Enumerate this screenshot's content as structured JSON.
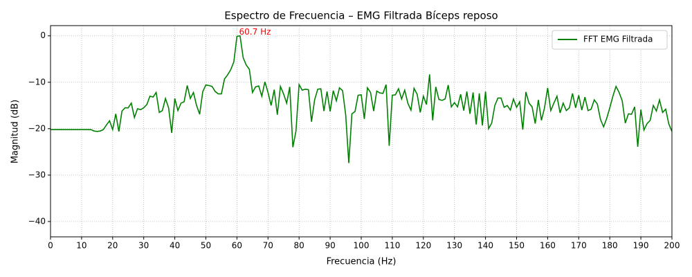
{
  "chart_data": {
    "type": "line",
    "title": "Espectro de Frecuencia – EMG Filtrada Bíceps reposo",
    "x_label": "Frecuencia (Hz)",
    "y_label": "Magnitud (dB)",
    "x": [
      0,
      1,
      2,
      3,
      4,
      5,
      6,
      7,
      8,
      9,
      10,
      11,
      12,
      13,
      14,
      15,
      16,
      17,
      18,
      19,
      20,
      21,
      22,
      23,
      24,
      25,
      26,
      27,
      28,
      29,
      30,
      31,
      32,
      33,
      34,
      35,
      36,
      37,
      38,
      39,
      40,
      41,
      42,
      43,
      44,
      45,
      46,
      47,
      48,
      49,
      50,
      51,
      52,
      53,
      54,
      55,
      56,
      57,
      58,
      59,
      60,
      61,
      62,
      63,
      64,
      65,
      66,
      67,
      68,
      69,
      70,
      71,
      72,
      73,
      74,
      75,
      76,
      77,
      78,
      79,
      80,
      81,
      82,
      83,
      84,
      85,
      86,
      87,
      88,
      89,
      90,
      91,
      92,
      93,
      94,
      95,
      96,
      97,
      98,
      99,
      100,
      101,
      102,
      103,
      104,
      105,
      106,
      107,
      108,
      109,
      110,
      111,
      112,
      113,
      114,
      115,
      116,
      117,
      118,
      119,
      120,
      121,
      122,
      123,
      124,
      125,
      126,
      127,
      128,
      129,
      130,
      131,
      132,
      133,
      134,
      135,
      136,
      137,
      138,
      139,
      140,
      141,
      142,
      143,
      144,
      145,
      146,
      147,
      148,
      149,
      150,
      151,
      152,
      153,
      154,
      155,
      156,
      157,
      158,
      159,
      160,
      161,
      162,
      163,
      164,
      165,
      166,
      167,
      168,
      169,
      170,
      171,
      172,
      173,
      174,
      175,
      176,
      177,
      178,
      179,
      180,
      181,
      182,
      183,
      184,
      185,
      186,
      187,
      188,
      189,
      190,
      191,
      192,
      193,
      194,
      195,
      196,
      197,
      198,
      199,
      200
    ],
    "series": [
      {
        "name": "FFT EMG Filtrada",
        "color": "#008000",
        "values": [
          -20.2,
          -20.2,
          -20.2,
          -20.2,
          -20.2,
          -20.2,
          -20.2,
          -20.2,
          -20.2,
          -20.2,
          -20.2,
          -20.2,
          -20.2,
          -20.2,
          -20.5,
          -20.6,
          -20.5,
          -20.2,
          -19.2,
          -18.3,
          -20.2,
          -16.8,
          -20.6,
          -16.2,
          -15.5,
          -15.5,
          -14.5,
          -17.6,
          -15.7,
          -15.9,
          -15.5,
          -14.8,
          -13.0,
          -13.2,
          -12.2,
          -16.5,
          -16.1,
          -13.5,
          -15.5,
          -20.9,
          -13.5,
          -16.1,
          -14.5,
          -14.2,
          -10.7,
          -13.5,
          -12.2,
          -15.0,
          -16.9,
          -12.0,
          -10.6,
          -10.7,
          -10.9,
          -12.0,
          -12.5,
          -12.5,
          -9.3,
          -8.4,
          -7.3,
          -5.6,
          -0.1,
          0,
          -4.7,
          -6.3,
          -7.2,
          -12.2,
          -11.0,
          -10.8,
          -13.0,
          -9.9,
          -12.2,
          -15.0,
          -11.6,
          -17.0,
          -10.9,
          -12.5,
          -14.5,
          -11.0,
          -24.0,
          -20.5,
          -10.5,
          -11.7,
          -11.5,
          -11.6,
          -18.5,
          -13.8,
          -11.5,
          -11.4,
          -16.2,
          -12.0,
          -16.3,
          -11.8,
          -14.0,
          -11.2,
          -11.8,
          -17.0,
          -27.4,
          -16.8,
          -16.3,
          -12.8,
          -12.7,
          -17.9,
          -11.2,
          -12.2,
          -16.2,
          -11.9,
          -12.3,
          -12.4,
          -10.5,
          -23.7,
          -12.8,
          -12.7,
          -11.4,
          -13.6,
          -11.7,
          -14.5,
          -16.0,
          -11.3,
          -12.6,
          -16.5,
          -13.0,
          -14.8,
          -8.3,
          -18.2,
          -11.0,
          -13.7,
          -13.9,
          -13.6,
          -10.6,
          -15.3,
          -14.4,
          -15.3,
          -12.6,
          -16.1,
          -12.0,
          -16.8,
          -12.2,
          -19.1,
          -12.4,
          -19.3,
          -12.0,
          -20.0,
          -18.8,
          -15.0,
          -13.4,
          -13.4,
          -15.4,
          -15.0,
          -16.0,
          -13.6,
          -15.4,
          -14.2,
          -20.2,
          -12.1,
          -14.5,
          -15.3,
          -18.9,
          -13.8,
          -18.2,
          -15.5,
          -11.2,
          -16.1,
          -14.5,
          -13.0,
          -16.6,
          -14.5,
          -16.1,
          -15.5,
          -12.4,
          -15.5,
          -12.8,
          -16.0,
          -13.2,
          -16.1,
          -15.8,
          -13.8,
          -14.7,
          -18.0,
          -19.6,
          -17.8,
          -15.5,
          -13.0,
          -10.9,
          -12.2,
          -14.0,
          -18.8,
          -16.8,
          -16.9,
          -15.3,
          -23.9,
          -15.9,
          -20.3,
          -18.9,
          -18.2,
          -15.0,
          -16.2,
          -13.8,
          -16.5,
          -15.8,
          -19.0,
          -20.6
        ]
      }
    ],
    "annotation": {
      "text": "60.7 Hz",
      "x": 60.7,
      "y": 0,
      "color": "#ff0000"
    },
    "xlim": [
      0,
      200
    ],
    "ylim": [
      -43.3,
      2.2
    ],
    "xticks": [
      0,
      10,
      20,
      30,
      40,
      50,
      60,
      70,
      80,
      90,
      100,
      110,
      120,
      130,
      140,
      150,
      160,
      170,
      180,
      190,
      200
    ],
    "yticks": [
      0,
      {
        "value": -10,
        "label": "−10"
      },
      {
        "value": -20,
        "label": "−20"
      },
      {
        "value": -30,
        "label": "−30"
      },
      {
        "value": -40,
        "label": "−40"
      }
    ],
    "grid": true,
    "legend": "upper right"
  }
}
